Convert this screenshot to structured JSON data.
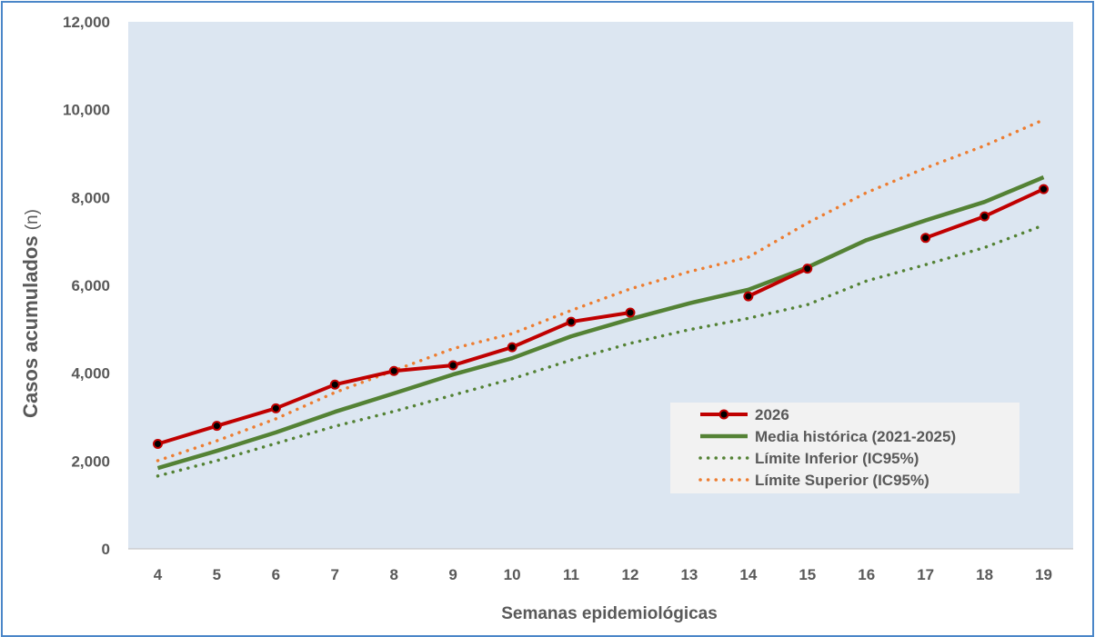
{
  "chart_data": {
    "type": "line",
    "xlabel": "Semanas epidemiológicas",
    "ylabel": "Casos acumulados",
    "ylabel_unit": "(n)",
    "ylim": [
      0,
      12000
    ],
    "y_ticks": [
      "0",
      "2,000",
      "4,000",
      "6,000",
      "8,000",
      "10,000",
      "12,000"
    ],
    "y_tick_values": [
      0,
      2000,
      4000,
      6000,
      8000,
      10000,
      12000
    ],
    "categories": [
      "4",
      "5",
      "6",
      "7",
      "8",
      "9",
      "10",
      "11",
      "12",
      "13",
      "14",
      "15",
      "16",
      "17",
      "18",
      "19"
    ],
    "grid": false,
    "legend_position": "bottom-right",
    "plot_background": "#dce6f1",
    "series": [
      {
        "name": "2026",
        "color": "#c00000",
        "style": "solid-markers",
        "values": [
          2390,
          2800,
          3200,
          3740,
          4050,
          4180,
          4590,
          5170,
          5380,
          null,
          5750,
          6380,
          null,
          7080,
          7570,
          8190
        ]
      },
      {
        "name": "Media histórica (2021-2025)",
        "color": "#548235",
        "style": "solid",
        "values": [
          1840,
          2230,
          2650,
          3120,
          3540,
          3970,
          4340,
          4840,
          5230,
          5590,
          5900,
          6410,
          7030,
          7480,
          7900,
          8460
        ]
      },
      {
        "name": "Límite Inferior (IC95%)",
        "color": "#548235",
        "style": "dotted",
        "values": [
          1660,
          2010,
          2400,
          2790,
          3130,
          3500,
          3870,
          4300,
          4680,
          4990,
          5250,
          5560,
          6100,
          6470,
          6860,
          7370
        ]
      },
      {
        "name": "Límite Superior (IC95%)",
        "color": "#ed7d31",
        "style": "dotted",
        "values": [
          2010,
          2460,
          2960,
          3560,
          4060,
          4560,
          4900,
          5430,
          5920,
          6310,
          6640,
          7420,
          8110,
          8670,
          9180,
          9770
        ]
      }
    ]
  }
}
